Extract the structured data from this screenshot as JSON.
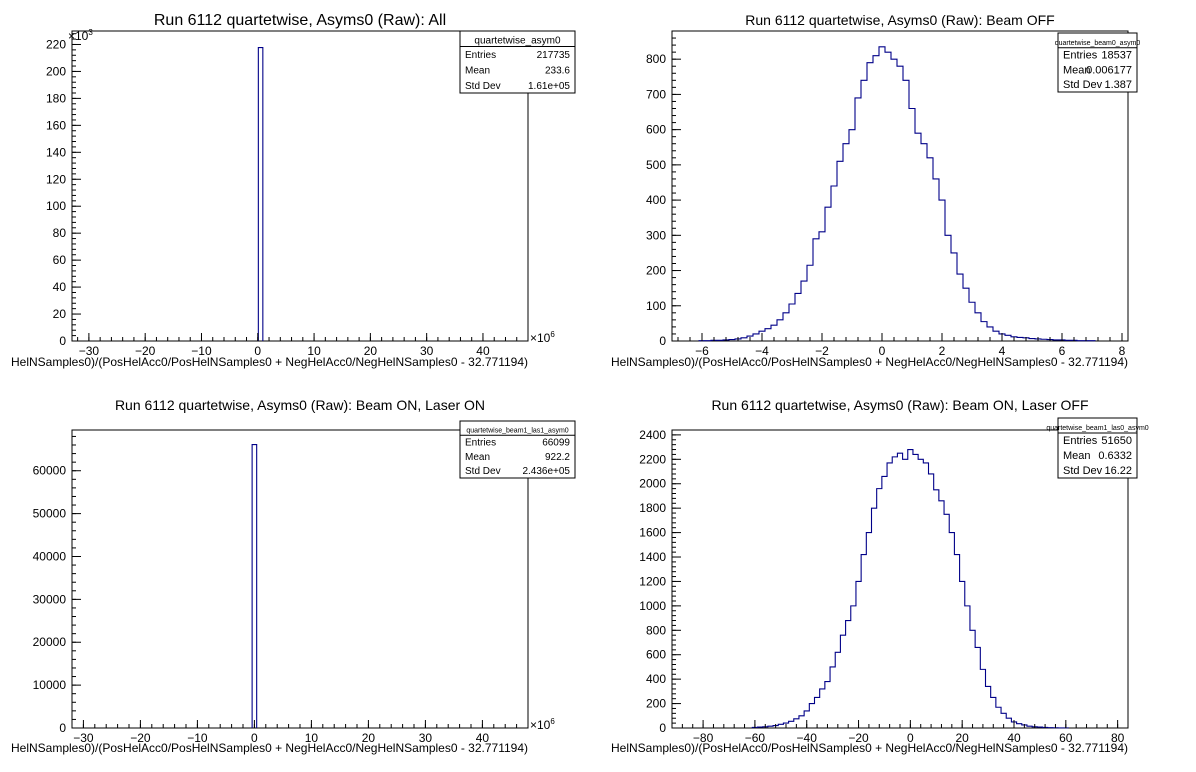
{
  "chart_data": [
    {
      "type": "bar",
      "title": "Run 6112 quartetwise, Asyms0 (Raw): All",
      "xlabel": "HelNSamples0)/(PosHelAcc0/PosHelNSamples0 + NegHelAcc0/NegHelNSamples0 - 32.771194)",
      "ylabel": "",
      "xlim": [
        -33,
        48
      ],
      "ylim": [
        0,
        230
      ],
      "x_multiplier": "×10",
      "x_multiplier_exp": "6",
      "y_multiplier": "×10",
      "y_multiplier_exp": "3",
      "x_ticks": [
        "−30",
        "−20",
        "−10",
        "0",
        "10",
        "20",
        "30",
        "40"
      ],
      "x_tick_values": [
        -30,
        -20,
        -10,
        0,
        10,
        20,
        30,
        40
      ],
      "y_ticks": [
        "0",
        "20",
        "40",
        "60",
        "80",
        "100",
        "120",
        "140",
        "160",
        "180",
        "200",
        "220"
      ],
      "y_tick_values": [
        0,
        20,
        40,
        60,
        80,
        100,
        120,
        140,
        160,
        180,
        200,
        220
      ],
      "x": [
        0.5
      ],
      "values": [
        217.7
      ],
      "bin_width": 0.8,
      "stats": {
        "name": "quartetwise_asym0",
        "entries_label": "Entries",
        "entries": "217735",
        "mean_label": "Mean",
        "mean": "233.6",
        "std_label": "Std Dev",
        "std": "1.61e+05"
      }
    },
    {
      "type": "bar",
      "title": "Run 6112 quartetwise, Asyms0 (Raw): Beam OFF",
      "xlabel": "HelNSamples0)/(PosHelAcc0/PosHelNSamples0 + NegHelAcc0/NegHelNSamples0 - 32.771194)",
      "ylabel": "",
      "xlim": [
        -7,
        8.2
      ],
      "ylim": [
        0,
        880
      ],
      "x_ticks": [
        "−6",
        "−4",
        "−2",
        "0",
        "2",
        "4",
        "6",
        "8"
      ],
      "x_tick_values": [
        -6,
        -4,
        -2,
        0,
        2,
        4,
        6,
        8
      ],
      "y_ticks": [
        "0",
        "100",
        "200",
        "300",
        "400",
        "500",
        "600",
        "700",
        "800"
      ],
      "y_tick_values": [
        0,
        100,
        200,
        300,
        400,
        500,
        600,
        700,
        800
      ],
      "x": [
        -6.0,
        -5.8,
        -5.6,
        -5.4,
        -5.2,
        -5.0,
        -4.8,
        -4.6,
        -4.4,
        -4.2,
        -4.0,
        -3.8,
        -3.6,
        -3.4,
        -3.2,
        -3.0,
        -2.8,
        -2.6,
        -2.4,
        -2.2,
        -2.0,
        -1.8,
        -1.6,
        -1.4,
        -1.2,
        -1.0,
        -0.8,
        -0.6,
        -0.4,
        -0.2,
        0.0,
        0.2,
        0.4,
        0.6,
        0.8,
        1.0,
        1.2,
        1.4,
        1.6,
        1.8,
        2.0,
        2.2,
        2.4,
        2.6,
        2.8,
        3.0,
        3.2,
        3.4,
        3.6,
        3.8,
        4.0,
        4.2,
        4.4,
        4.6,
        4.8,
        5.0,
        5.2,
        5.4,
        5.6,
        5.8,
        6.0,
        6.2,
        6.4,
        6.6,
        6.8,
        7.0
      ],
      "values": [
        1,
        1,
        2,
        2,
        3,
        4,
        6,
        9,
        14,
        20,
        28,
        35,
        45,
        60,
        80,
        105,
        135,
        170,
        215,
        290,
        310,
        380,
        440,
        510,
        560,
        600,
        690,
        740,
        790,
        810,
        835,
        820,
        800,
        780,
        740,
        660,
        590,
        560,
        520,
        460,
        400,
        300,
        250,
        190,
        150,
        110,
        80,
        55,
        40,
        28,
        20,
        16,
        12,
        10,
        9,
        7,
        6,
        5,
        4,
        3,
        3,
        2,
        2,
        1,
        1,
        1
      ],
      "bin_width": 0.2,
      "stats": {
        "name": "quartetwise_beam0_asym0",
        "entries_label": "Entries",
        "entries": "18537",
        "mean_label": "Mean",
        "mean": "0.006177",
        "std_label": "Std Dev",
        "std": "1.387"
      }
    },
    {
      "type": "bar",
      "title": "Run 6112 quartetwise, Asyms0 (Raw): Beam ON, Laser ON",
      "xlabel": "HelNSamples0)/(PosHelAcc0/PosHelNSamples0 + NegHelAcc0/NegHelNSamples0 - 32.771194)",
      "ylabel": "",
      "xlim": [
        -32,
        48
      ],
      "ylim": [
        0,
        69500
      ],
      "x_multiplier": "×10",
      "x_multiplier_exp": "6",
      "x_ticks": [
        "−30",
        "−20",
        "−10",
        "0",
        "10",
        "20",
        "30",
        "40"
      ],
      "x_tick_values": [
        -30,
        -20,
        -10,
        0,
        10,
        20,
        30,
        40
      ],
      "y_ticks": [
        "0",
        "10000",
        "20000",
        "30000",
        "40000",
        "50000",
        "60000"
      ],
      "y_tick_values": [
        0,
        10000,
        20000,
        30000,
        40000,
        50000,
        60000
      ],
      "x": [
        0.0
      ],
      "values": [
        66099
      ],
      "bin_width": 0.8,
      "stats": {
        "name": "quartetwise_beam1_las1_asym0",
        "entries_label": "Entries",
        "entries": "66099",
        "mean_label": "Mean",
        "mean": "922.2",
        "std_label": "Std Dev",
        "std": "2.436e+05"
      }
    },
    {
      "type": "bar",
      "title": "Run 6112 quartetwise, Asyms0 (Raw): Beam ON, Laser OFF",
      "xlabel": "HelNSamples0)/(PosHelAcc0/PosHelNSamples0 + NegHelAcc0/NegHelNSamples0 - 32.771194)",
      "ylabel": "",
      "xlim": [
        -92,
        84
      ],
      "ylim": [
        0,
        2440
      ],
      "x_ticks": [
        "−80",
        "−60",
        "−40",
        "−20",
        "0",
        "20",
        "40",
        "60",
        "80"
      ],
      "x_tick_values": [
        -80,
        -60,
        -40,
        -20,
        0,
        20,
        40,
        60,
        80
      ],
      "y_ticks": [
        "0",
        "200",
        "400",
        "600",
        "800",
        "1000",
        "1200",
        "1400",
        "1600",
        "1800",
        "2000",
        "2200",
        "2400"
      ],
      "y_tick_values": [
        0,
        200,
        400,
        600,
        800,
        1000,
        1200,
        1400,
        1600,
        1800,
        2000,
        2200,
        2400
      ],
      "x": [
        -60,
        -58,
        -56,
        -54,
        -52,
        -50,
        -48,
        -46,
        -44,
        -42,
        -40,
        -38,
        -36,
        -34,
        -32,
        -30,
        -28,
        -26,
        -24,
        -22,
        -20,
        -18,
        -16,
        -14,
        -12,
        -10,
        -8,
        -6,
        -4,
        -2,
        0,
        2,
        4,
        6,
        8,
        10,
        12,
        14,
        16,
        18,
        20,
        22,
        24,
        26,
        28,
        30,
        32,
        34,
        36,
        38,
        40,
        42,
        44,
        46,
        48,
        50,
        52,
        54,
        56,
        58,
        60
      ],
      "values": [
        5,
        8,
        10,
        15,
        20,
        30,
        40,
        55,
        75,
        100,
        140,
        200,
        250,
        320,
        380,
        500,
        620,
        760,
        880,
        1000,
        1200,
        1420,
        1600,
        1800,
        1960,
        2060,
        2170,
        2220,
        2250,
        2200,
        2280,
        2240,
        2200,
        2170,
        2080,
        1950,
        1860,
        1750,
        1600,
        1420,
        1200,
        1000,
        800,
        660,
        480,
        340,
        250,
        170,
        120,
        80,
        50,
        35,
        25,
        15,
        10,
        8,
        5,
        3,
        2,
        1,
        1
      ],
      "bin_width": 2,
      "stats": {
        "name": "quartetwise_beam1_las0_asym0",
        "entries_label": "Entries",
        "entries": "51650",
        "mean_label": "Mean",
        "mean": "0.6332",
        "std_label": "Std Dev",
        "std": "16.22"
      }
    }
  ]
}
